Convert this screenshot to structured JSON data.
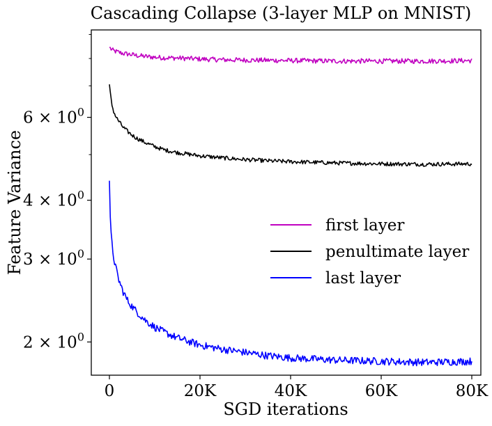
{
  "chart_data": {
    "type": "line",
    "title": "Cascading Collapse (3-layer MLP on MNIST)",
    "xlabel": "SGD iterations",
    "ylabel": "Feature Variance",
    "xscale": "linear",
    "yscale": "log",
    "xlim": [
      -4000,
      82000
    ],
    "ylim": [
      1.7,
      9.2
    ],
    "grid": false,
    "legend_position": "center-right",
    "xticks": [
      {
        "value": 0,
        "label": "0"
      },
      {
        "value": 20000,
        "label": "20K"
      },
      {
        "value": 40000,
        "label": "40K"
      },
      {
        "value": 60000,
        "label": "60K"
      },
      {
        "value": 80000,
        "label": "80K"
      }
    ],
    "yticks": [
      {
        "value": 2,
        "coef": "2",
        "label": "2 × 10^0"
      },
      {
        "value": 3,
        "coef": "3",
        "label": "3 × 10^0"
      },
      {
        "value": 4,
        "coef": "4",
        "label": "4 × 10^0"
      },
      {
        "value": 6,
        "coef": "6",
        "label": "6 × 10^0"
      }
    ],
    "tick_mantissa_sep": "×",
    "tick_base": "10",
    "tick_exponent": "0",
    "series": [
      {
        "name": "first layer",
        "color": "#c000c0",
        "x": [
          0,
          500,
          1000,
          2000,
          3000,
          4000,
          5000,
          6000,
          8000,
          10000,
          12000,
          15000,
          20000,
          25000,
          30000,
          40000,
          50000,
          60000,
          70000,
          80000
        ],
        "values": [
          8.45,
          8.35,
          8.3,
          8.25,
          8.2,
          8.18,
          8.15,
          8.12,
          8.08,
          8.05,
          8.03,
          8.02,
          7.98,
          7.95,
          7.94,
          7.92,
          7.9,
          7.9,
          7.9,
          7.92
        ],
        "noise": 0.012
      },
      {
        "name": "penultimate layer",
        "color": "#000000",
        "x": [
          0,
          300,
          600,
          1000,
          1500,
          2000,
          3000,
          4000,
          5000,
          6000,
          8000,
          10000,
          12000,
          15000,
          20000,
          25000,
          30000,
          35000,
          40000,
          50000,
          60000,
          70000,
          80000
        ],
        "values": [
          7.05,
          6.6,
          6.35,
          6.15,
          6.0,
          5.9,
          5.72,
          5.6,
          5.5,
          5.42,
          5.3,
          5.2,
          5.12,
          5.05,
          4.97,
          4.92,
          4.88,
          4.85,
          4.83,
          4.8,
          4.78,
          4.77,
          4.78
        ],
        "noise": 0.01
      },
      {
        "name": "last layer",
        "color": "#0000ff",
        "x": [
          0,
          150,
          300,
          600,
          1000,
          1500,
          2000,
          3000,
          4000,
          5000,
          6000,
          8000,
          10000,
          12000,
          15000,
          20000,
          25000,
          30000,
          35000,
          40000,
          50000,
          60000,
          70000,
          80000
        ],
        "values": [
          4.4,
          3.7,
          3.45,
          3.2,
          3.0,
          2.85,
          2.72,
          2.56,
          2.45,
          2.38,
          2.32,
          2.22,
          2.15,
          2.1,
          2.04,
          1.97,
          1.93,
          1.9,
          1.87,
          1.85,
          1.83,
          1.82,
          1.81,
          1.82
        ],
        "noise": 0.018
      }
    ],
    "legend": [
      {
        "label": "first layer",
        "color": "#c000c0"
      },
      {
        "label": "penultimate layer",
        "color": "#000000"
      },
      {
        "label": "last layer",
        "color": "#0000ff"
      }
    ]
  }
}
